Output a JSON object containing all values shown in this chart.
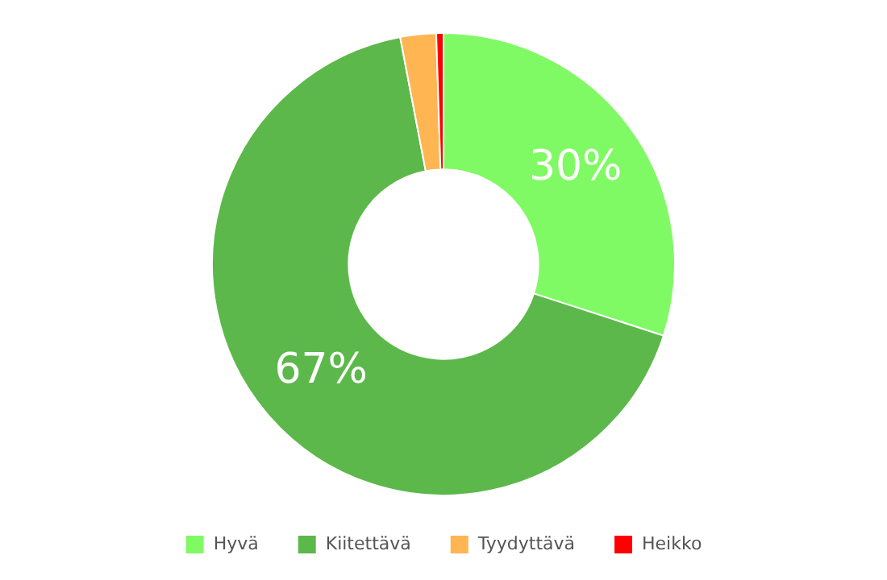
{
  "chart_data": {
    "type": "donut",
    "categories": [
      "Hyvä",
      "Kiitettävä",
      "Tyydyttävä",
      "Heikko"
    ],
    "values": [
      30,
      67,
      2.5,
      0.5
    ],
    "colors": [
      "#80fa64",
      "#5cb84a",
      "#ffb552",
      "#ff0000"
    ],
    "value_labels": [
      "30%",
      "67%",
      null,
      null
    ],
    "legend": "bottom"
  }
}
